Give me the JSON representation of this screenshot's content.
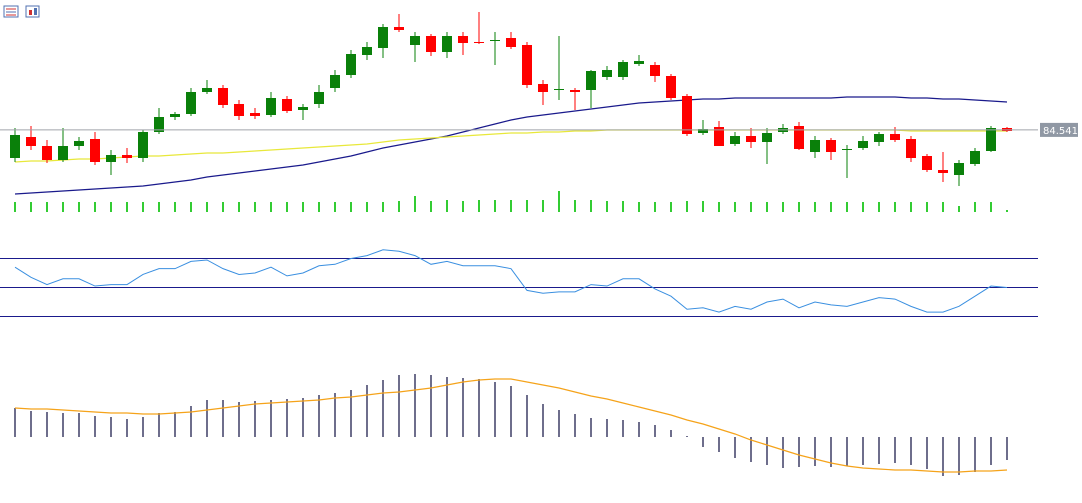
{
  "chart_data": [
    {
      "type": "candlestick",
      "open": [
        84.26,
        84.47,
        84.38,
        84.24,
        84.38,
        84.45,
        84.22,
        84.29,
        84.26,
        84.52,
        84.67,
        84.7,
        84.92,
        84.96,
        84.8,
        84.71,
        84.69,
        84.85,
        84.74,
        84.8,
        84.96,
        85.09,
        85.29,
        85.36,
        85.57,
        85.39,
        85.48,
        85.32,
        85.48,
        85.42,
        85.43,
        85.46,
        85.39,
        85.0,
        84.94,
        84.94,
        84.94,
        85.07,
        85.07,
        85.2,
        85.19,
        85.08,
        84.88,
        84.51,
        84.57,
        84.4,
        84.48,
        84.42,
        84.52,
        84.58,
        84.32,
        84.44,
        84.34,
        84.36,
        84.42,
        84.5,
        84.45,
        84.28,
        84.14,
        84.09,
        84.2,
        84.33,
        84.56
      ],
      "high": [
        84.56,
        84.58,
        84.44,
        84.56,
        84.47,
        84.52,
        84.34,
        84.36,
        84.54,
        84.76,
        84.72,
        84.96,
        85.04,
        84.99,
        84.84,
        84.76,
        84.92,
        84.88,
        84.8,
        84.99,
        85.14,
        85.34,
        85.42,
        85.6,
        85.7,
        85.52,
        85.5,
        85.52,
        85.52,
        85.72,
        85.52,
        85.52,
        85.42,
        85.04,
        85.48,
        84.96,
        85.14,
        85.18,
        85.24,
        85.29,
        85.22,
        85.1,
        84.9,
        84.64,
        84.63,
        84.52,
        84.56,
        84.56,
        84.6,
        84.62,
        84.48,
        84.46,
        84.39,
        84.48,
        84.52,
        84.57,
        84.48,
        84.3,
        84.32,
        84.24,
        84.36,
        84.58,
        84.57
      ],
      "low": [
        84.22,
        84.34,
        84.21,
        84.22,
        84.34,
        84.19,
        84.09,
        84.21,
        84.22,
        84.5,
        84.64,
        84.68,
        84.9,
        84.76,
        84.64,
        84.65,
        84.67,
        84.71,
        84.64,
        84.76,
        84.92,
        85.06,
        85.24,
        85.26,
        85.52,
        85.22,
        85.28,
        85.26,
        85.29,
        85.4,
        85.19,
        85.35,
        84.96,
        84.79,
        84.84,
        84.74,
        84.76,
        85.04,
        85.04,
        85.18,
        85.02,
        84.84,
        84.48,
        84.49,
        84.38,
        84.38,
        84.36,
        84.2,
        84.5,
        84.34,
        84.26,
        84.24,
        84.06,
        84.34,
        84.38,
        84.42,
        84.22,
        84.12,
        84.02,
        83.98,
        84.18,
        84.32,
        84.52
      ],
      "close": [
        84.49,
        84.38,
        84.24,
        84.38,
        84.43,
        84.22,
        84.29,
        84.26,
        84.52,
        84.67,
        84.7,
        84.92,
        84.96,
        84.79,
        84.68,
        84.68,
        84.86,
        84.73,
        84.77,
        84.92,
        85.09,
        85.3,
        85.37,
        85.57,
        85.54,
        85.48,
        85.32,
        85.48,
        85.41,
        85.41,
        85.44,
        85.37,
        84.99,
        84.92,
        84.95,
        84.92,
        85.13,
        85.14,
        85.22,
        85.23,
        85.08,
        84.86,
        84.5,
        84.55,
        84.38,
        84.48,
        84.42,
        84.51,
        84.56,
        84.35,
        84.44,
        84.32,
        84.35,
        84.43,
        84.5,
        84.44,
        84.26,
        84.14,
        84.11,
        84.21,
        84.33,
        84.56,
        84.53
      ],
      "up_color": "#0a800a",
      "down_color": "#ff0000",
      "series": [
        {
          "color": "#1a1a8c",
          "values": [
            83.9,
            83.91,
            83.92,
            83.93,
            83.94,
            83.95,
            83.96,
            83.97,
            83.98,
            84.0,
            84.02,
            84.04,
            84.07,
            84.09,
            84.11,
            84.13,
            84.15,
            84.17,
            84.19,
            84.22,
            84.25,
            84.28,
            84.32,
            84.36,
            84.39,
            84.42,
            84.45,
            84.48,
            84.52,
            84.56,
            84.6,
            84.64,
            84.67,
            84.69,
            84.71,
            84.73,
            84.75,
            84.77,
            84.79,
            84.81,
            84.82,
            84.83,
            84.84,
            84.85,
            84.85,
            84.86,
            84.86,
            84.86,
            84.86,
            84.86,
            84.86,
            84.86,
            84.87,
            84.87,
            84.87,
            84.87,
            84.86,
            84.86,
            84.85,
            84.85,
            84.84,
            84.83,
            84.82
          ]
        },
        {
          "color": "#e8e83a",
          "values": [
            84.22,
            84.23,
            84.23,
            84.24,
            84.25,
            84.25,
            84.26,
            84.27,
            84.28,
            84.28,
            84.29,
            84.3,
            84.31,
            84.31,
            84.32,
            84.33,
            84.34,
            84.35,
            84.36,
            84.37,
            84.38,
            84.39,
            84.4,
            84.42,
            84.44,
            84.45,
            84.46,
            84.47,
            84.48,
            84.49,
            84.5,
            84.51,
            84.51,
            84.52,
            84.52,
            84.53,
            84.53,
            84.54,
            84.54,
            84.54,
            84.54,
            84.54,
            84.54,
            84.54,
            84.54,
            84.54,
            84.54,
            84.54,
            84.54,
            84.54,
            84.54,
            84.54,
            84.54,
            84.54,
            84.54,
            84.54,
            84.53,
            84.53,
            84.53,
            84.53,
            84.53,
            84.53,
            84.53
          ]
        }
      ],
      "ylim": [
        83.84,
        85.84
      ],
      "last_price": 84.541
    },
    {
      "type": "bar",
      "color": "#33cc33",
      "ylim": [
        0,
        30
      ],
      "values": [
        10,
        10,
        10,
        10,
        10,
        10,
        10,
        10,
        10,
        10,
        10,
        10,
        10,
        10,
        10,
        10,
        10,
        10,
        10,
        10,
        10,
        10,
        10,
        10,
        11,
        16,
        11,
        12,
        11,
        12,
        12,
        12,
        12,
        12,
        21,
        12,
        12,
        11,
        11,
        10,
        10,
        10,
        11,
        11,
        10,
        10,
        10,
        10,
        10,
        10,
        10,
        10,
        10,
        10,
        10,
        10,
        10,
        10,
        10,
        6,
        10,
        10,
        2
      ]
    },
    {
      "type": "line",
      "color": "#3a8fe0",
      "ylim": [
        20,
        80
      ],
      "levels": [
        70,
        50,
        30
      ],
      "level_color": "#1a1a8c",
      "values": [
        64,
        57,
        52,
        56,
        56,
        51,
        52,
        52,
        59,
        63,
        63,
        68,
        69,
        63,
        59,
        60,
        64,
        58,
        60,
        65,
        66,
        70,
        72,
        76,
        75,
        72,
        66,
        68,
        65,
        65,
        65,
        63,
        48,
        46,
        47,
        47,
        52,
        51,
        56,
        56,
        49,
        44,
        35,
        36,
        33,
        37,
        35,
        40,
        42,
        36,
        40,
        38,
        37,
        40,
        43,
        42,
        37,
        33,
        33,
        37,
        44,
        51,
        50
      ]
    },
    {
      "type": "macd",
      "color": "#0d0d40",
      "ylim": [
        -0.43,
        0.77
      ],
      "values": [
        0.29,
        0.26,
        0.25,
        0.24,
        0.24,
        0.21,
        0.2,
        0.18,
        0.2,
        0.24,
        0.25,
        0.31,
        0.37,
        0.37,
        0.35,
        0.36,
        0.37,
        0.38,
        0.39,
        0.42,
        0.44,
        0.47,
        0.52,
        0.57,
        0.62,
        0.63,
        0.62,
        0.6,
        0.59,
        0.58,
        0.55,
        0.51,
        0.42,
        0.33,
        0.27,
        0.23,
        0.19,
        0.18,
        0.17,
        0.15,
        0.12,
        0.07,
        0.01,
        -0.1,
        -0.15,
        -0.21,
        -0.25,
        -0.28,
        -0.31,
        -0.3,
        -0.29,
        -0.3,
        -0.29,
        -0.28,
        -0.27,
        -0.26,
        -0.28,
        -0.32,
        -0.39,
        -0.38,
        -0.35,
        -0.28,
        -0.23
      ],
      "series": [
        {
          "color": "#f5a31a",
          "values": [
            0.29,
            0.28,
            0.28,
            0.27,
            0.26,
            0.25,
            0.24,
            0.24,
            0.23,
            0.23,
            0.24,
            0.25,
            0.27,
            0.29,
            0.31,
            0.33,
            0.34,
            0.35,
            0.36,
            0.37,
            0.39,
            0.4,
            0.42,
            0.44,
            0.45,
            0.47,
            0.49,
            0.52,
            0.55,
            0.57,
            0.58,
            0.58,
            0.55,
            0.52,
            0.49,
            0.45,
            0.41,
            0.38,
            0.34,
            0.3,
            0.26,
            0.22,
            0.17,
            0.13,
            0.08,
            0.03,
            -0.03,
            -0.08,
            -0.13,
            -0.18,
            -0.22,
            -0.26,
            -0.29,
            -0.31,
            -0.32,
            -0.33,
            -0.33,
            -0.34,
            -0.35,
            -0.35,
            -0.34,
            -0.34,
            -0.33
          ]
        }
      ]
    }
  ]
}
